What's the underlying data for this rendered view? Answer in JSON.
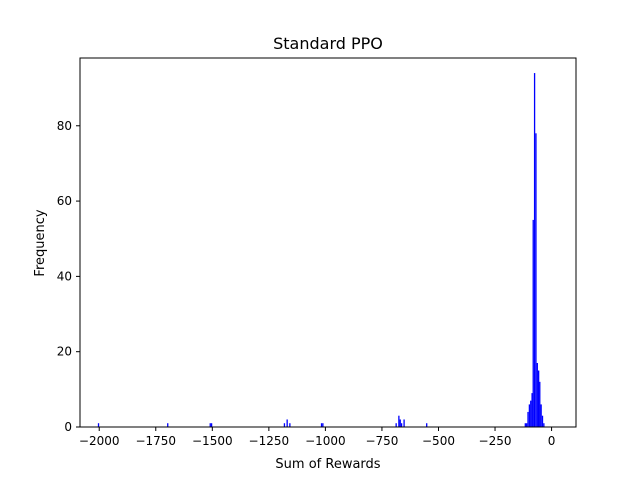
{
  "chart_data": {
    "type": "bar",
    "subtype": "histogram",
    "title": "Standard PPO",
    "xlabel": "Sum of Rewards",
    "ylabel": "Frequency",
    "xlim": [
      -2085,
      108
    ],
    "ylim": [
      0,
      98
    ],
    "bin_width": 5.8,
    "x_ticks": [
      {
        "value": -2000,
        "label": "−2000"
      },
      {
        "value": -1750,
        "label": "−1750"
      },
      {
        "value": -1500,
        "label": "−1500"
      },
      {
        "value": -1250,
        "label": "−1250"
      },
      {
        "value": -1000,
        "label": "−1000"
      },
      {
        "value": -750,
        "label": "−750"
      },
      {
        "value": -500,
        "label": "−500"
      },
      {
        "value": -250,
        "label": "−250"
      },
      {
        "value": 0,
        "label": "0"
      }
    ],
    "y_ticks": [
      {
        "value": 0,
        "label": "0"
      },
      {
        "value": 20,
        "label": "20"
      },
      {
        "value": 40,
        "label": "40"
      },
      {
        "value": 60,
        "label": "60"
      },
      {
        "value": 80,
        "label": "80"
      }
    ],
    "grid": false,
    "bar_color": "#0000ff",
    "bins": [
      {
        "x": -2006,
        "count": 1
      },
      {
        "x": -1700,
        "count": 1
      },
      {
        "x": -1512,
        "count": 1
      },
      {
        "x": -1506,
        "count": 1
      },
      {
        "x": -1184,
        "count": 1
      },
      {
        "x": -1172,
        "count": 2
      },
      {
        "x": -1160,
        "count": 1
      },
      {
        "x": -1020,
        "count": 1
      },
      {
        "x": -1014,
        "count": 1
      },
      {
        "x": -690,
        "count": 1
      },
      {
        "x": -678,
        "count": 3
      },
      {
        "x": -672,
        "count": 2
      },
      {
        "x": -666,
        "count": 1
      },
      {
        "x": -655,
        "count": 2
      },
      {
        "x": -555,
        "count": 1
      },
      {
        "x": -119,
        "count": 1
      },
      {
        "x": -113,
        "count": 1
      },
      {
        "x": -107,
        "count": 4
      },
      {
        "x": -101,
        "count": 6
      },
      {
        "x": -95,
        "count": 7
      },
      {
        "x": -89,
        "count": 9
      },
      {
        "x": -84,
        "count": 55
      },
      {
        "x": -78,
        "count": 94
      },
      {
        "x": -72,
        "count": 78
      },
      {
        "x": -66,
        "count": 17
      },
      {
        "x": -60,
        "count": 15
      },
      {
        "x": -55,
        "count": 12
      },
      {
        "x": -49,
        "count": 6
      },
      {
        "x": -43,
        "count": 3
      },
      {
        "x": -37,
        "count": 1
      }
    ]
  }
}
